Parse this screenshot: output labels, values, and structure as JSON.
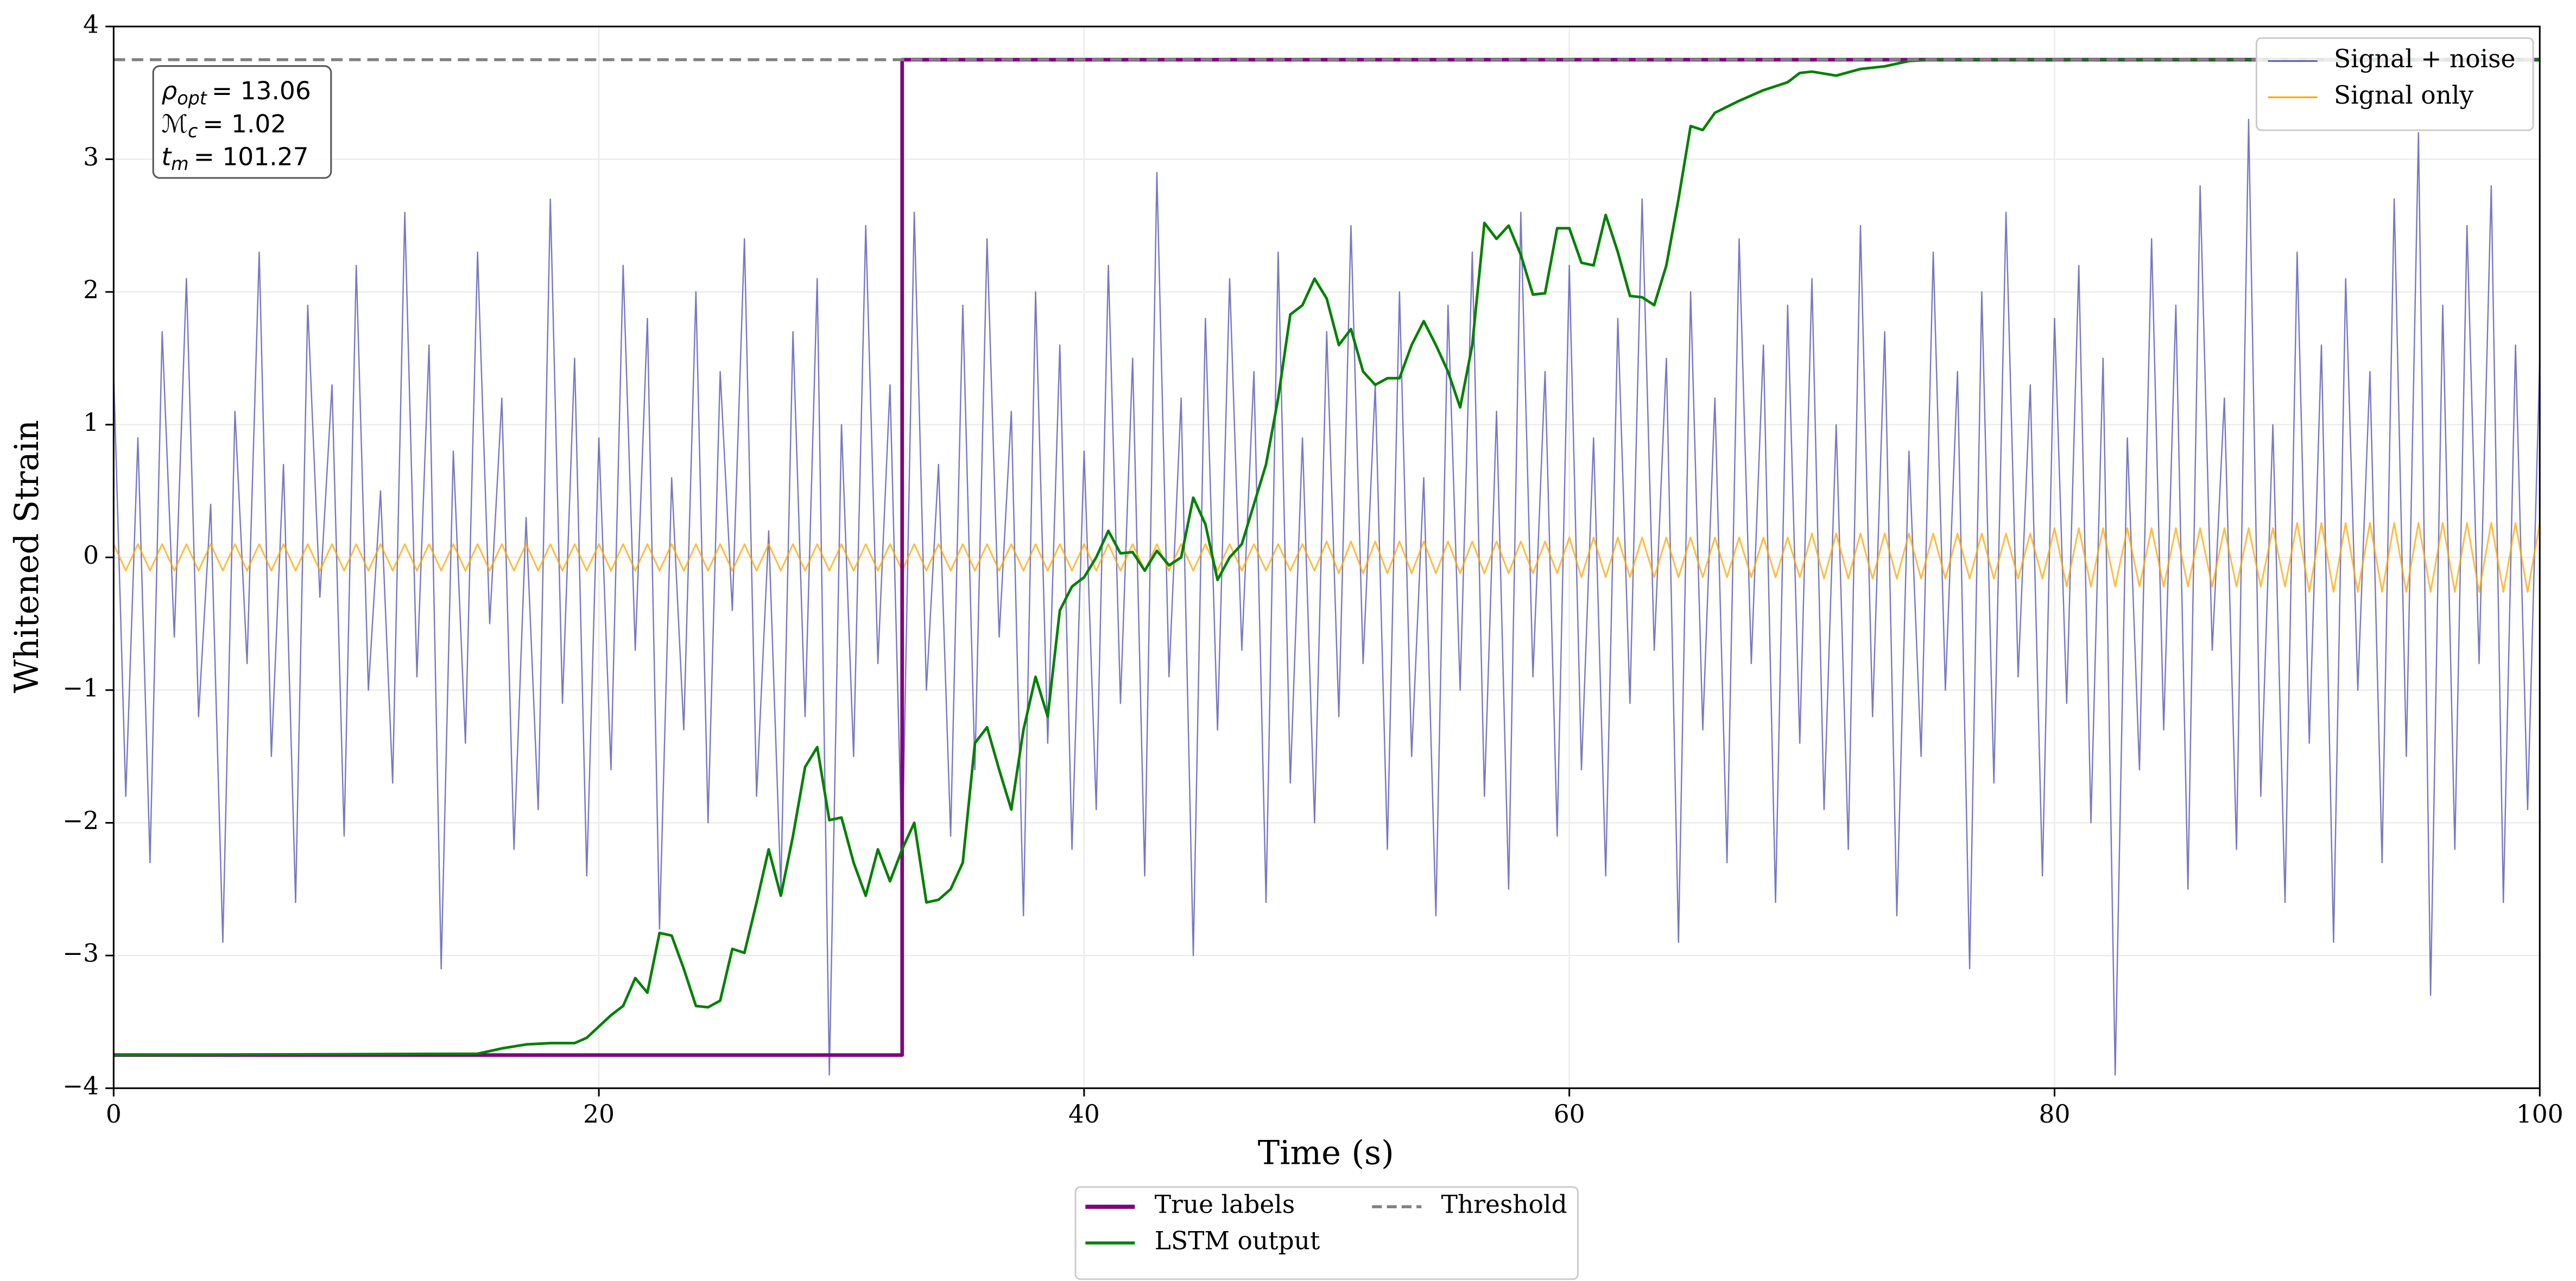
{
  "chart_data": {
    "type": "line",
    "xlabel": "Time (s)",
    "ylabel": "Whitened Strain",
    "xlim": [
      0,
      100
    ],
    "ylim": [
      -4,
      4
    ],
    "xticks": [
      0,
      20,
      40,
      60,
      80,
      100
    ],
    "yticks": [
      {
        "value": -4,
        "label": "−4"
      },
      {
        "value": -3,
        "label": "−3"
      },
      {
        "value": -2,
        "label": "−2"
      },
      {
        "value": -1,
        "label": "−1"
      },
      0,
      1,
      2,
      3,
      4
    ],
    "grid": true,
    "x": [
      0,
      0.5,
      1,
      1.5,
      2,
      2.5,
      3,
      3.5,
      4,
      4.5,
      5,
      5.5,
      6,
      6.5,
      7,
      7.5,
      8,
      8.5,
      9,
      9.5,
      10,
      10.5,
      11,
      11.5,
      12,
      12.5,
      13,
      13.5,
      14,
      14.5,
      15,
      15.5,
      16,
      16.5,
      17,
      17.5,
      18,
      18.5,
      19,
      19.5,
      20,
      20.5,
      21,
      21.5,
      22,
      22.5,
      23,
      23.5,
      24,
      24.5,
      25,
      25.5,
      26,
      26.5,
      27,
      27.5,
      28,
      28.5,
      29,
      29.5,
      30,
      30.5,
      31,
      31.5,
      32,
      32.5,
      33,
      33.5,
      34,
      34.5,
      35,
      35.5,
      36,
      36.5,
      37,
      37.5,
      38,
      38.5,
      39,
      39.5,
      40,
      40.5,
      41,
      41.5,
      42,
      42.5,
      43,
      43.5,
      44,
      44.5,
      45,
      45.5,
      46,
      46.5,
      47,
      47.5,
      48,
      48.5,
      49,
      49.5,
      50,
      50.5,
      51,
      51.5,
      52,
      52.5,
      53,
      53.5,
      54,
      54.5,
      55,
      55.5,
      56,
      56.5,
      57,
      57.5,
      58,
      58.5,
      59,
      59.5,
      60,
      60.5,
      61,
      61.5,
      62,
      62.5,
      63,
      63.5,
      64,
      64.5,
      65,
      65.5,
      66,
      66.5,
      67,
      67.5,
      68,
      68.5,
      69,
      69.5,
      70,
      70.5,
      71,
      71.5,
      72,
      72.5,
      73,
      73.5,
      74,
      74.5,
      75,
      75.5,
      76,
      76.5,
      77,
      77.5,
      78,
      78.5,
      79,
      79.5,
      80,
      80.5,
      81,
      81.5,
      82,
      82.5,
      83,
      83.5,
      84,
      84.5,
      85,
      85.5,
      86,
      86.5,
      87,
      87.5,
      88,
      88.5,
      89,
      89.5,
      90,
      90.5,
      91,
      91.5,
      92,
      92.5,
      93,
      93.5,
      94,
      94.5,
      95,
      95.5,
      96,
      96.5,
      97,
      97.5,
      98,
      98.5,
      99,
      99.5,
      100
    ],
    "series": [
      {
        "name": "Signal + noise",
        "color": "#6060b8",
        "legend": "upper right",
        "values": [
          1.4,
          -1.8,
          0.9,
          -2.3,
          1.7,
          -0.6,
          2.1,
          -1.2,
          0.4,
          -2.9,
          1.1,
          -0.8,
          2.3,
          -1.5,
          0.7,
          -2.6,
          1.9,
          -0.3,
          1.3,
          -2.1,
          2.2,
          -1.0,
          0.5,
          -1.7,
          2.6,
          -0.9,
          1.6,
          -3.1,
          0.8,
          -1.4,
          2.3,
          -0.5,
          1.2,
          -2.2,
          0.3,
          -1.9,
          2.7,
          -1.1,
          1.5,
          -2.4,
          0.9,
          -1.6,
          2.2,
          -0.7,
          1.8,
          -2.8,
          0.6,
          -1.3,
          2.0,
          -2.0,
          1.4,
          -0.4,
          2.4,
          -1.8,
          0.2,
          -2.5,
          1.7,
          -1.2,
          2.1,
          -3.9,
          1.0,
          -1.5,
          2.5,
          -0.8,
          1.3,
          -2.3,
          2.6,
          -1.0,
          0.7,
          -2.1,
          1.9,
          -1.6,
          2.4,
          -0.6,
          1.1,
          -2.7,
          2.0,
          -1.4,
          1.6,
          -2.2,
          0.8,
          -1.9,
          2.2,
          -1.1,
          1.5,
          -2.4,
          2.9,
          -0.9,
          1.2,
          -3.0,
          1.8,
          -1.3,
          2.1,
          -0.7,
          1.4,
          -2.6,
          2.3,
          -1.7,
          0.9,
          -2.0,
          1.7,
          -1.2,
          2.5,
          -0.8,
          1.3,
          -2.2,
          2.0,
          -1.5,
          0.6,
          -2.7,
          1.9,
          -1.0,
          2.3,
          -1.8,
          1.1,
          -2.5,
          2.6,
          -0.9,
          1.4,
          -2.1,
          2.2,
          -1.6,
          0.9,
          -2.4,
          1.8,
          -1.1,
          2.7,
          -0.7,
          1.5,
          -2.9,
          2.0,
          -1.3,
          1.2,
          -2.3,
          2.4,
          -0.8,
          1.6,
          -2.6,
          1.9,
          -1.4,
          2.1,
          -1.9,
          1.0,
          -2.2,
          2.5,
          -1.2,
          1.7,
          -2.7,
          0.8,
          -1.5,
          2.3,
          -1.0,
          1.4,
          -3.1,
          2.0,
          -1.7,
          2.6,
          -0.9,
          1.3,
          -2.4,
          1.8,
          -1.1,
          2.2,
          -2.0,
          1.5,
          -3.9,
          0.9,
          -1.6,
          2.4,
          -1.3,
          1.9,
          -2.5,
          2.8,
          -0.7,
          1.2,
          -2.2,
          3.3,
          -1.8,
          1.0,
          -2.6,
          2.3,
          -1.4,
          1.6,
          -2.9,
          2.1,
          -1.0,
          1.4,
          -2.3,
          2.7,
          -1.5,
          3.2,
          -3.3,
          1.9,
          -2.2,
          2.5,
          -0.8,
          2.8,
          -2.6,
          1.6,
          -1.9,
          1.5
        ]
      },
      {
        "name": "Signal only",
        "color": "#ffa500",
        "legend": "upper right",
        "values": [
          0.1,
          -0.1,
          0.1,
          -0.1,
          0.1,
          -0.1,
          0.1,
          -0.1,
          0.1,
          -0.1,
          0.1,
          -0.1,
          0.1,
          -0.1,
          0.1,
          -0.1,
          0.1,
          -0.1,
          0.1,
          -0.1,
          0.1,
          -0.1,
          0.1,
          -0.1,
          0.1,
          -0.1,
          0.1,
          -0.1,
          0.1,
          -0.1,
          0.1,
          -0.1,
          0.1,
          -0.1,
          0.1,
          -0.1,
          0.1,
          -0.1,
          0.1,
          -0.1,
          0.1,
          -0.1,
          0.1,
          -0.1,
          0.1,
          -0.1,
          0.1,
          -0.1,
          0.1,
          -0.1,
          0.1,
          -0.1,
          0.1,
          -0.1,
          0.1,
          -0.1,
          0.1,
          -0.1,
          0.1,
          -0.1,
          0.1,
          -0.1,
          0.1,
          -0.1,
          0.1,
          -0.1,
          0.1,
          -0.1,
          0.1,
          -0.1,
          0.1,
          -0.1,
          0.1,
          -0.1,
          0.1,
          -0.1,
          0.1,
          -0.1,
          0.1,
          -0.1,
          0.1,
          -0.1,
          0.1,
          -0.1,
          0.1,
          -0.1,
          0.1,
          -0.1,
          0.1,
          -0.1,
          0.1,
          -0.1,
          0.1,
          -0.1,
          0.1,
          -0.1,
          0.1,
          -0.1,
          0.1,
          -0.1,
          0.12,
          -0.12,
          0.12,
          -0.12,
          0.12,
          -0.12,
          0.12,
          -0.12,
          0.12,
          -0.12,
          0.12,
          -0.12,
          0.12,
          -0.12,
          0.12,
          -0.12,
          0.12,
          -0.12,
          0.12,
          -0.12,
          0.15,
          -0.15,
          0.15,
          -0.15,
          0.15,
          -0.15,
          0.15,
          -0.15,
          0.15,
          -0.15,
          0.15,
          -0.15,
          0.15,
          -0.15,
          0.15,
          -0.15,
          0.15,
          -0.15,
          0.15,
          -0.15,
          0.18,
          -0.16,
          0.18,
          -0.16,
          0.18,
          -0.16,
          0.18,
          -0.16,
          0.18,
          -0.16,
          0.18,
          -0.16,
          0.18,
          -0.16,
          0.18,
          -0.16,
          0.18,
          -0.16,
          0.18,
          -0.16,
          0.22,
          -0.22,
          0.22,
          -0.22,
          0.22,
          -0.22,
          0.22,
          -0.22,
          0.22,
          -0.22,
          0.22,
          -0.22,
          0.22,
          -0.22,
          0.22,
          -0.22,
          0.22,
          -0.22,
          0.22,
          -0.22,
          0.26,
          -0.26,
          0.26,
          -0.26,
          0.26,
          -0.26,
          0.26,
          -0.26,
          0.26,
          -0.26,
          0.26,
          -0.26,
          0.26,
          -0.26,
          0.26,
          -0.26,
          0.26,
          -0.26,
          0.26,
          -0.26,
          0.26
        ]
      },
      {
        "name": "True labels",
        "color": "#800080",
        "legend": "lower center",
        "x": [
          0,
          32.5,
          32.5,
          100
        ],
        "values": [
          -3.75,
          -3.75,
          3.75,
          3.75
        ]
      },
      {
        "name": "LSTM output",
        "color": "#008000",
        "legend": "lower center",
        "x": [
          0,
          15,
          16,
          17,
          18,
          19,
          19.5,
          20.5,
          21,
          21.5,
          22,
          22.5,
          23,
          23.5,
          24,
          24.5,
          25,
          25.5,
          26,
          26.5,
          27,
          27.5,
          28,
          28.5,
          29,
          29.5,
          30,
          30.5,
          31,
          31.5,
          32,
          32.5,
          33,
          33.5,
          34,
          34.5,
          35,
          35.5,
          36,
          36.5,
          37,
          37.5,
          38,
          38.5,
          39,
          39.5,
          40,
          40.5,
          41,
          41.5,
          42,
          42.5,
          43,
          43.5,
          44,
          44.5,
          45,
          45.5,
          46,
          46.5,
          47,
          47.5,
          48,
          48.5,
          49,
          49.5,
          50,
          50.5,
          51,
          51.5,
          52,
          52.5,
          53,
          53.5,
          54,
          54.5,
          55,
          55.5,
          56,
          56.5,
          57,
          57.5,
          58,
          58.5,
          59,
          59.5,
          60,
          60.5,
          61,
          61.5,
          62,
          62.5,
          63,
          63.5,
          64,
          64.5,
          65,
          65.5,
          66,
          67,
          68,
          69,
          69.5,
          70,
          71,
          72,
          73,
          74,
          75,
          100
        ],
        "values": [
          -3.75,
          -3.74,
          -3.7,
          -3.67,
          -3.66,
          -3.66,
          -3.62,
          -3.45,
          -3.38,
          -3.17,
          -3.28,
          -2.83,
          -2.85,
          -3.1,
          -3.38,
          -3.39,
          -3.34,
          -2.95,
          -2.98,
          -2.6,
          -2.2,
          -2.55,
          -2.1,
          -1.58,
          -1.43,
          -1.98,
          -1.96,
          -2.3,
          -2.55,
          -2.2,
          -2.44,
          -2.2,
          -2.0,
          -2.6,
          -2.58,
          -2.5,
          -2.3,
          -1.4,
          -1.28,
          -1.6,
          -1.9,
          -1.3,
          -0.9,
          -1.2,
          -0.4,
          -0.22,
          -0.15,
          0.0,
          0.2,
          0.03,
          0.04,
          -0.1,
          0.05,
          -0.06,
          0.0,
          0.45,
          0.25,
          -0.17,
          0.0,
          0.1,
          0.4,
          0.7,
          1.2,
          1.83,
          1.9,
          2.1,
          1.95,
          1.6,
          1.72,
          1.4,
          1.3,
          1.35,
          1.35,
          1.6,
          1.78,
          1.6,
          1.4,
          1.13,
          1.6,
          2.52,
          2.4,
          2.5,
          2.28,
          1.98,
          1.99,
          2.48,
          2.48,
          2.22,
          2.2,
          2.58,
          2.3,
          1.97,
          1.96,
          1.9,
          2.2,
          2.7,
          3.25,
          3.22,
          3.35,
          3.44,
          3.52,
          3.58,
          3.65,
          3.66,
          3.63,
          3.68,
          3.7,
          3.74,
          3.75,
          3.75
        ]
      }
    ],
    "threshold": {
      "name": "Threshold",
      "value": 3.75,
      "color": "#808080",
      "legend": "lower center"
    },
    "annotations": [
      {
        "symbol": "ρ",
        "subscript": "opt",
        "text": "= 13.06"
      },
      {
        "symbol": "ℳ",
        "subscript": "c",
        "text": "= 1.02"
      },
      {
        "symbol": "t",
        "subscript": "m",
        "text": "= 101.27"
      }
    ]
  }
}
